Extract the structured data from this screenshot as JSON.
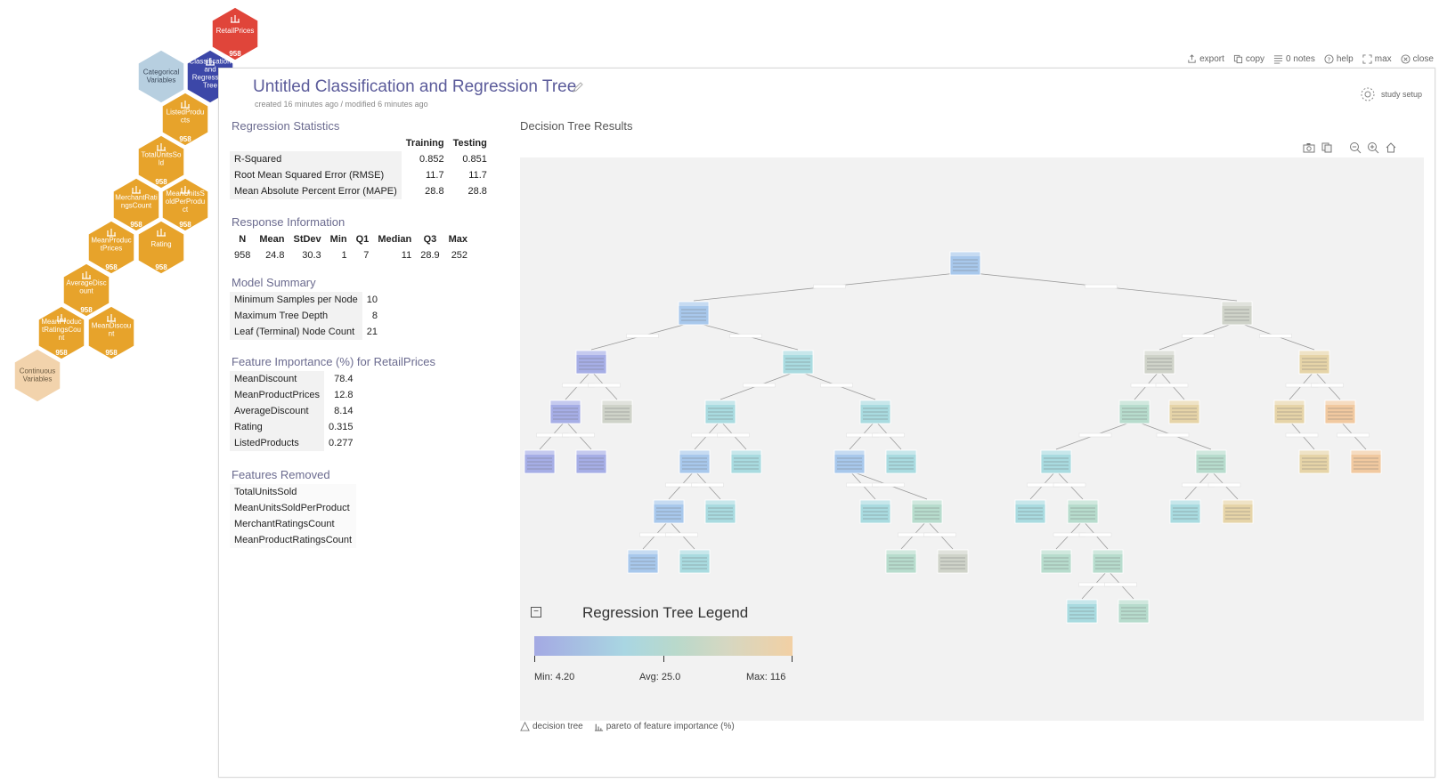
{
  "hexmap": {
    "nodes": [
      {
        "id": "retail_prices",
        "label": [
          "RetailPrices"
        ],
        "count": "958",
        "color": "#e0453a",
        "text_color": "#ffffff",
        "has_icon": true
      },
      {
        "id": "categorical",
        "label": [
          "Categorical",
          "Variables"
        ],
        "count": "",
        "color": "#b7cfe0",
        "text_color": "#3b4a5c",
        "has_icon": false
      },
      {
        "id": "cart",
        "label": [
          "Classification",
          "and",
          "Regression",
          "Tree"
        ],
        "count": "",
        "color": "#3c47a8",
        "text_color": "#ffffff",
        "has_icon": true
      },
      {
        "id": "listed_products",
        "label": [
          "ListedProdu",
          "cts"
        ],
        "count": "958",
        "color": "#e7a32b",
        "text_color": "#ffffff",
        "has_icon": true
      },
      {
        "id": "total_units",
        "label": [
          "TotalUnitsSo",
          "ld"
        ],
        "count": "958",
        "color": "#e7a32b",
        "text_color": "#ffffff",
        "has_icon": true
      },
      {
        "id": "merchant_ratings",
        "label": [
          "MerchantRati",
          "ngsCount"
        ],
        "count": "958",
        "color": "#e7a32b",
        "text_color": "#ffffff",
        "has_icon": true
      },
      {
        "id": "mean_units_sold",
        "label": [
          "MeanUnitsS",
          "oldPerProdu",
          "ct"
        ],
        "count": "958",
        "color": "#e7a32b",
        "text_color": "#ffffff",
        "has_icon": true
      },
      {
        "id": "mean_product_prices",
        "label": [
          "MeanProduc",
          "tPrices"
        ],
        "count": "958",
        "color": "#e7a32b",
        "text_color": "#ffffff",
        "has_icon": true
      },
      {
        "id": "rating",
        "label": [
          "Rating"
        ],
        "count": "958",
        "color": "#e7a32b",
        "text_color": "#ffffff",
        "has_icon": true
      },
      {
        "id": "average_discount",
        "label": [
          "AverageDisc",
          "ount"
        ],
        "count": "958",
        "color": "#e7a32b",
        "text_color": "#ffffff",
        "has_icon": true
      },
      {
        "id": "mean_product_ratings",
        "label": [
          "MeanProduc",
          "tRatingsCou",
          "nt"
        ],
        "count": "958",
        "color": "#e7a32b",
        "text_color": "#ffffff",
        "has_icon": true
      },
      {
        "id": "mean_discount",
        "label": [
          "MeanDiscou",
          "nt"
        ],
        "count": "958",
        "color": "#e7a32b",
        "text_color": "#ffffff",
        "has_icon": true
      },
      {
        "id": "continuous",
        "label": [
          "Continuous",
          "Variables"
        ],
        "count": "",
        "color": "#f2d3ac",
        "text_color": "#6b5a40",
        "has_icon": false
      }
    ]
  },
  "toolbar": {
    "export": "export",
    "copy": "copy",
    "notes": "0 notes",
    "help": "help",
    "max": "max",
    "close": "close"
  },
  "header": {
    "title": "Untitled Classification and Regression Tree",
    "subtitle": "created 16 minutes ago / modified 6 minutes ago",
    "study_setup": "study setup"
  },
  "regression_statistics": {
    "title": "Regression Statistics",
    "columns": [
      "Training",
      "Testing"
    ],
    "rows": [
      {
        "label": "R-Squared",
        "training": "0.852",
        "testing": "0.851"
      },
      {
        "label": "Root Mean Squared Error (RMSE)",
        "training": "11.7",
        "testing": "11.7"
      },
      {
        "label": "Mean Absolute Percent Error (MAPE)",
        "training": "28.8",
        "testing": "28.8"
      }
    ]
  },
  "response_information": {
    "title": "Response Information",
    "columns": [
      "N",
      "Mean",
      "StDev",
      "Min",
      "Q1",
      "Median",
      "Q3",
      "Max"
    ],
    "values": [
      "958",
      "24.8",
      "30.3",
      "1",
      "7",
      "11",
      "28.9",
      "252"
    ]
  },
  "model_summary": {
    "title": "Model Summary",
    "rows": [
      {
        "label": "Minimum Samples per Node",
        "value": "10"
      },
      {
        "label": "Maximum Tree Depth",
        "value": "8"
      },
      {
        "label": "Leaf (Terminal) Node Count",
        "value": "21"
      }
    ]
  },
  "feature_importance": {
    "title": "Feature Importance (%) for RetailPrices",
    "rows": [
      {
        "label": "MeanDiscount",
        "value": "78.4"
      },
      {
        "label": "MeanProductPrices",
        "value": "12.8"
      },
      {
        "label": "AverageDiscount",
        "value": "8.14"
      },
      {
        "label": "Rating",
        "value": "0.315"
      },
      {
        "label": "ListedProducts",
        "value": "0.277"
      }
    ]
  },
  "features_removed": {
    "title": "Features Removed",
    "items": [
      "TotalUnitsSold",
      "MeanUnitsSoldPerProduct",
      "MerchantRatingsCount",
      "MeanProductRatingsCount"
    ]
  },
  "decision_tree": {
    "title": "Decision Tree Results",
    "colors": {
      "purple": "#a6aee6",
      "blue": "#a8c8ec",
      "teal": "#a9dbe0",
      "green": "#b7dccd",
      "gray": "#cfd3c9",
      "tan": "#e6d4a8",
      "orange": "#f1c9a0",
      "edge": "#9a9a9a"
    }
  },
  "legend": {
    "title": "Regression Tree Legend",
    "min": "Min: 4.20",
    "avg": "Avg: 25.0",
    "max": "Max: 116",
    "collapse_symbol": "−"
  },
  "bottom_tabs": {
    "decision_tree": "decision tree",
    "pareto": "pareto of feature importance (%)"
  }
}
